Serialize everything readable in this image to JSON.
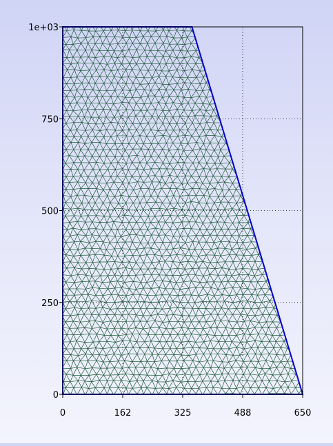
{
  "colors": {
    "mesh": "#1f5a3a",
    "boundary": "#0000cc",
    "frame": "#000000",
    "grid": "#000000",
    "background_top": "#d0d4f5",
    "background_bottom": "#f3f4fd"
  },
  "chart_data": {
    "type": "mesh",
    "xlim": [
      0,
      650
    ],
    "ylim": [
      0,
      1000
    ],
    "x_ticks": [
      {
        "value": 0,
        "label": "0"
      },
      {
        "value": 162.5,
        "label": "162"
      },
      {
        "value": 325,
        "label": "325"
      },
      {
        "value": 487.5,
        "label": "488"
      },
      {
        "value": 650,
        "label": "650"
      }
    ],
    "y_ticks": [
      {
        "value": 0,
        "label": "0"
      },
      {
        "value": 250,
        "label": "250"
      },
      {
        "value": 500,
        "label": "500"
      },
      {
        "value": 750,
        "label": "750"
      },
      {
        "value": 1000,
        "label": "1e+03"
      }
    ],
    "domain_polygon": [
      [
        0,
        0
      ],
      [
        650,
        0
      ],
      [
        350,
        1000
      ],
      [
        0,
        1000
      ]
    ],
    "mesh_spacing": 20,
    "grid": "dotted"
  }
}
